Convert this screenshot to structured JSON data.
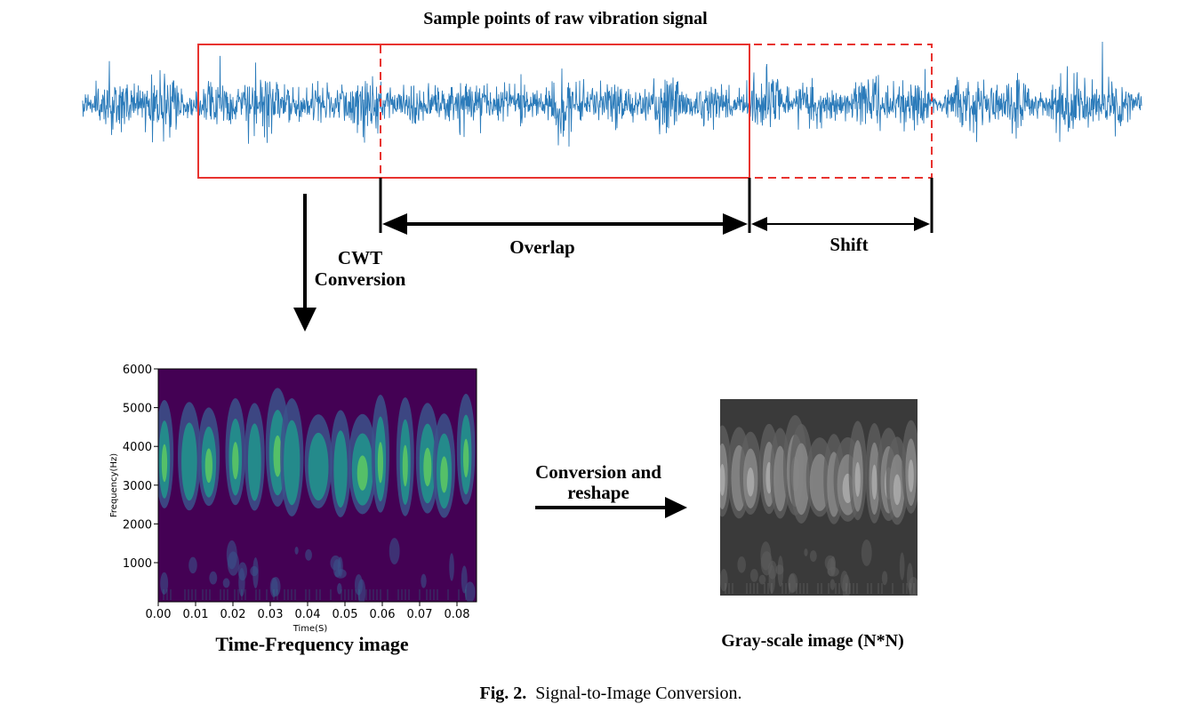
{
  "signal": {
    "title": "Sample points of raw vibration signal",
    "color": "#2b7bba"
  },
  "windows": {
    "window_color": "#e8332f",
    "overlap_label": "Overlap",
    "shift_label": "Shift"
  },
  "cwt": {
    "label_line1": "CWT",
    "label_line2": "Conversion"
  },
  "tf_image": {
    "caption": "Time-Frequency image",
    "xlabel": "Time(S)",
    "ylabel": "Frequency(Hz)",
    "x_ticks": [
      "0.00",
      "0.01",
      "0.02",
      "0.03",
      "0.04",
      "0.05",
      "0.06",
      "0.07",
      "0.08"
    ],
    "y_ticks": [
      "6000",
      "5000",
      "4000",
      "3000",
      "2000",
      "1000"
    ],
    "colormap": [
      "#440154",
      "#3b528b",
      "#21918c",
      "#5ec962",
      "#fde725"
    ]
  },
  "reshape": {
    "label_line1": "Conversion and",
    "label_line2": "reshape"
  },
  "gray_image": {
    "caption": "Gray-scale image (N*N)",
    "background": "#3a3a3a"
  },
  "figure_caption": {
    "label": "Fig. 2.",
    "text": "Signal-to-Image Conversion."
  }
}
